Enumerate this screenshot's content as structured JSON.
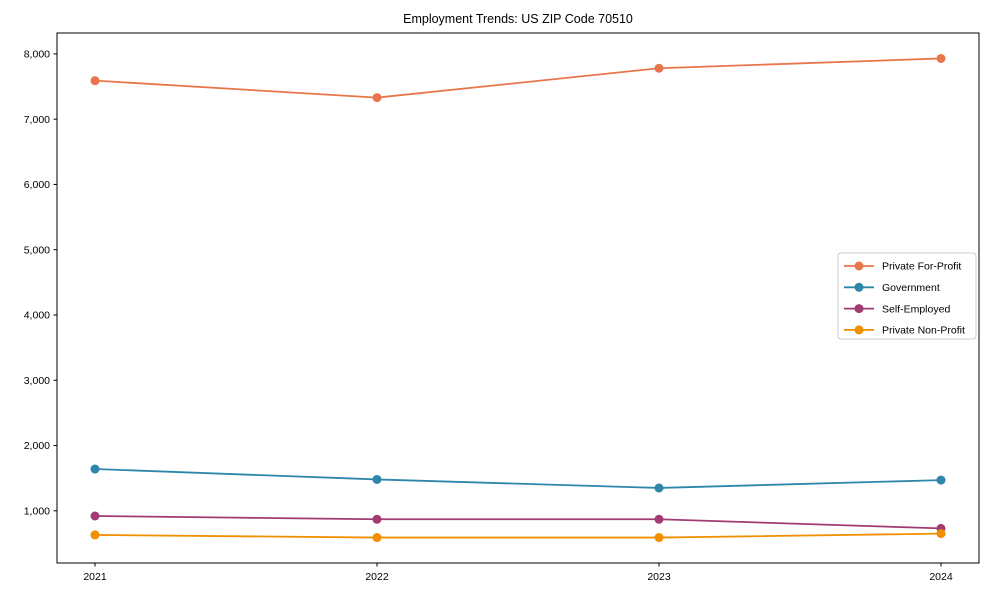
{
  "chart_data": {
    "type": "line",
    "title": "Employment Trends: US ZIP Code 70510",
    "xlabel": "",
    "ylabel": "",
    "x": [
      2021,
      2022,
      2023,
      2024
    ],
    "series": [
      {
        "name": "Private For-Profit",
        "color": "#E8764B",
        "values": [
          7590,
          7330,
          7780,
          7930
        ]
      },
      {
        "name": "Government",
        "color": "#2E86AB",
        "values": [
          1640,
          1480,
          1350,
          1470
        ]
      },
      {
        "name": "Self-Employed",
        "color": "#A23B72",
        "values": [
          920,
          870,
          870,
          730
        ]
      },
      {
        "name": "Private Non-Profit",
        "color": "#F18F01",
        "values": [
          630,
          590,
          590,
          650
        ]
      }
    ],
    "yticks": [
      1000,
      2000,
      3000,
      4000,
      5000,
      6000,
      7000,
      8000
    ],
    "ylim": [
      200,
      8320
    ],
    "grid": false,
    "legend_position": "center right",
    "legend_border_color": "#cccccc",
    "axis_color": "#000000"
  }
}
